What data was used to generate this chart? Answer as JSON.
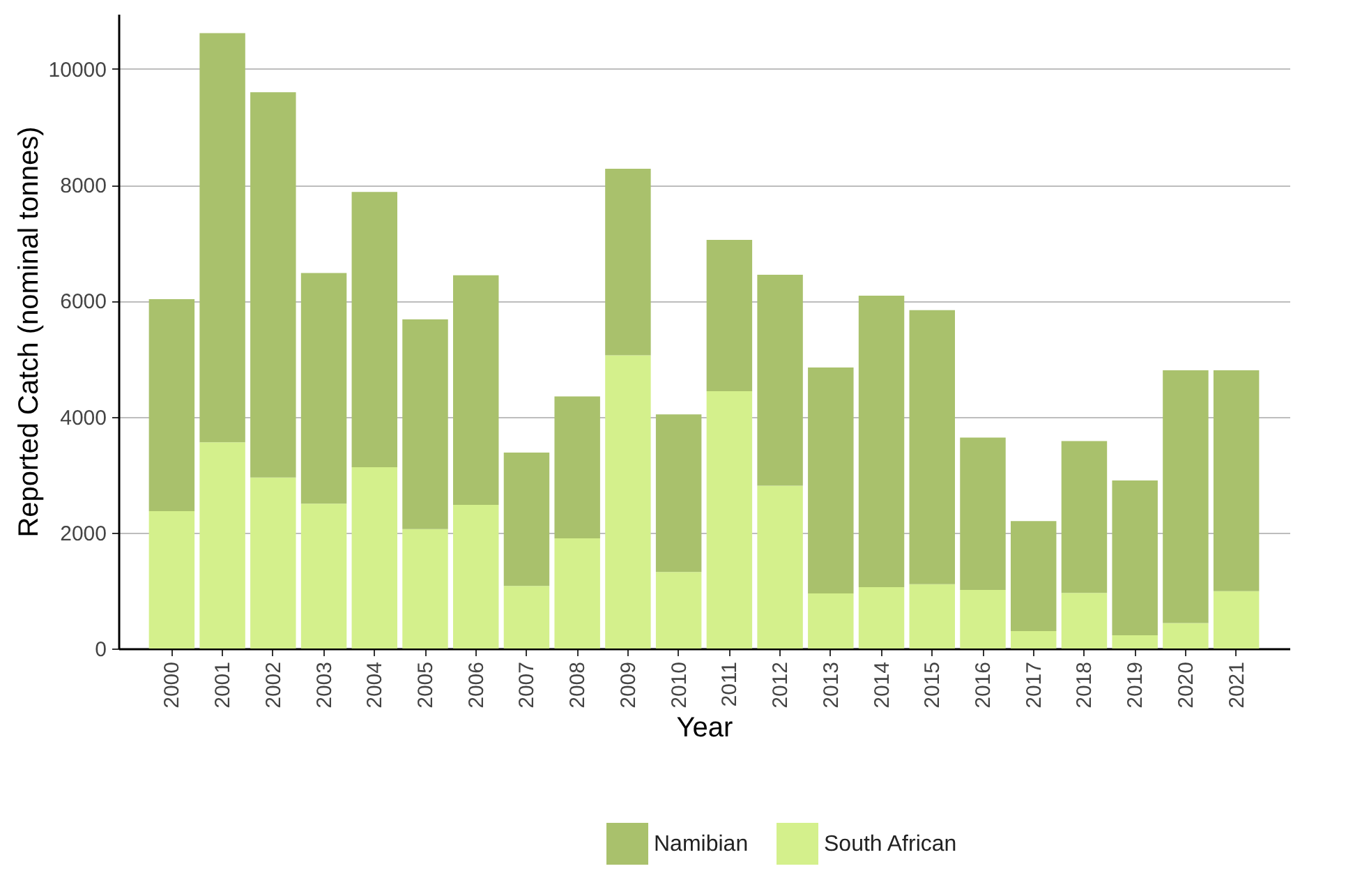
{
  "chart_data": {
    "type": "bar",
    "stacked": true,
    "xlabel": "Year",
    "ylabel": "Reported Catch (nominal tonnes)",
    "categories": [
      "2000",
      "2001",
      "2002",
      "2003",
      "2004",
      "2005",
      "2006",
      "2007",
      "2008",
      "2009",
      "2010",
      "2011",
      "2012",
      "2013",
      "2014",
      "2015",
      "2016",
      "2017",
      "2018",
      "2019",
      "2020",
      "2021"
    ],
    "series": [
      {
        "name": "South African",
        "color": "#d4f08c",
        "values": [
          2370,
          3560,
          2950,
          2500,
          3130,
          2060,
          2480,
          1080,
          1900,
          5060,
          1320,
          4440,
          2810,
          950,
          1060,
          1110,
          1010,
          300,
          960,
          230,
          440,
          990
        ]
      },
      {
        "name": "Namibian",
        "color": "#a9c16c",
        "values": [
          3660,
          7060,
          6650,
          3980,
          4750,
          3620,
          3960,
          2300,
          2450,
          3220,
          2720,
          2610,
          3640,
          3900,
          5030,
          4730,
          2630,
          1900,
          2620,
          2670,
          4360,
          3810
        ]
      }
    ],
    "ylim": [
      0,
      10950
    ],
    "yticks": [
      0,
      2000,
      4000,
      6000,
      8000,
      10000
    ],
    "grid": "y",
    "legend": "bottom"
  }
}
